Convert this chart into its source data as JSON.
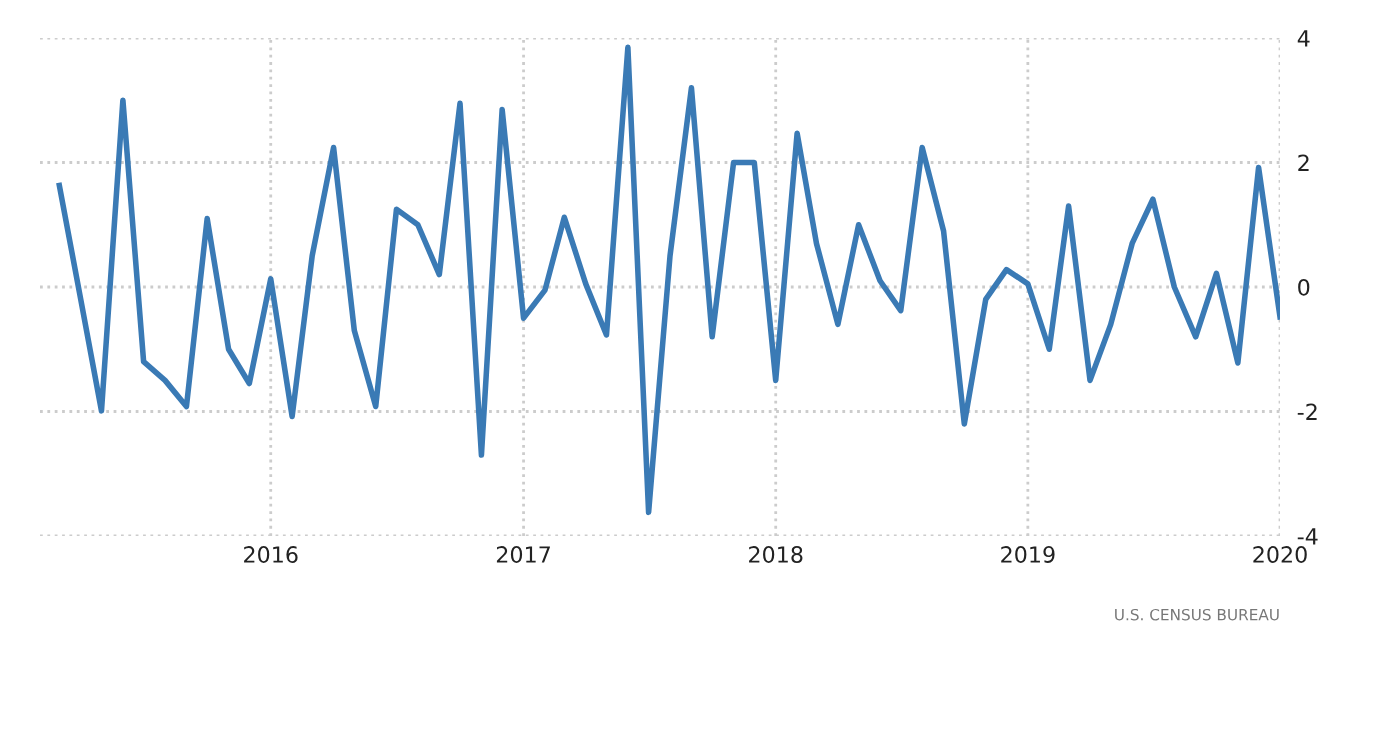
{
  "chart_data": {
    "type": "line",
    "x": [
      "2015-03",
      "2015-04",
      "2015-05",
      "2015-06",
      "2015-07",
      "2015-08",
      "2015-09",
      "2015-10",
      "2015-11",
      "2015-12",
      "2016-01",
      "2016-02",
      "2016-03",
      "2016-04",
      "2016-05",
      "2016-06",
      "2016-07",
      "2016-08",
      "2016-09",
      "2016-10",
      "2016-11",
      "2016-12",
      "2017-01",
      "2017-02",
      "2017-03",
      "2017-04",
      "2017-05",
      "2017-06",
      "2017-07",
      "2017-08",
      "2017-09",
      "2017-10",
      "2017-11",
      "2017-12",
      "2018-01",
      "2018-02",
      "2018-03",
      "2018-04",
      "2018-05",
      "2018-06",
      "2018-07",
      "2018-08",
      "2018-09",
      "2018-10",
      "2018-11",
      "2018-12",
      "2019-01",
      "2019-02",
      "2019-03",
      "2019-04",
      "2019-05",
      "2019-06",
      "2019-07",
      "2019-08",
      "2019-09",
      "2019-10",
      "2019-11",
      "2019-12",
      "2020-01"
    ],
    "series": [
      {
        "color": "#3a7ab5",
        "values": [
          1.63,
          -0.2,
          -1.99,
          3.0,
          -1.2,
          -1.5,
          -1.92,
          1.1,
          -1.0,
          -1.55,
          0.13,
          -2.08,
          0.5,
          2.24,
          -0.7,
          -1.92,
          1.25,
          1.0,
          0.2,
          2.95,
          -2.7,
          2.85,
          -0.5,
          -0.05,
          1.12,
          0.05,
          -0.77,
          3.85,
          -3.62,
          0.5,
          3.2,
          -0.8,
          2.0,
          2.0,
          -1.5,
          2.47,
          0.7,
          -0.6,
          1.0,
          0.1,
          -0.38,
          2.24,
          0.9,
          -2.2,
          -0.2,
          0.28,
          0.05,
          -1.0,
          1.3,
          -1.5,
          -0.6,
          0.7,
          1.41,
          0.0,
          -0.8,
          0.22,
          -1.22,
          1.92,
          -0.48
        ]
      }
    ],
    "xlim": [
      "2015-02",
      "2020-01"
    ],
    "xticks": [
      {
        "value": "2016-01",
        "label": "2016"
      },
      {
        "value": "2017-01",
        "label": "2017"
      },
      {
        "value": "2018-01",
        "label": "2018"
      },
      {
        "value": "2019-01",
        "label": "2019"
      },
      {
        "value": "2020-01",
        "label": "2020"
      }
    ],
    "ylim": [
      -4,
      4
    ],
    "yticks": [
      -4,
      -2,
      0,
      2,
      4
    ],
    "grid": true,
    "legend": false,
    "marker": "none",
    "line_style": "solid",
    "annotations": [
      "U.S. CENSUS BUREAU"
    ]
  }
}
